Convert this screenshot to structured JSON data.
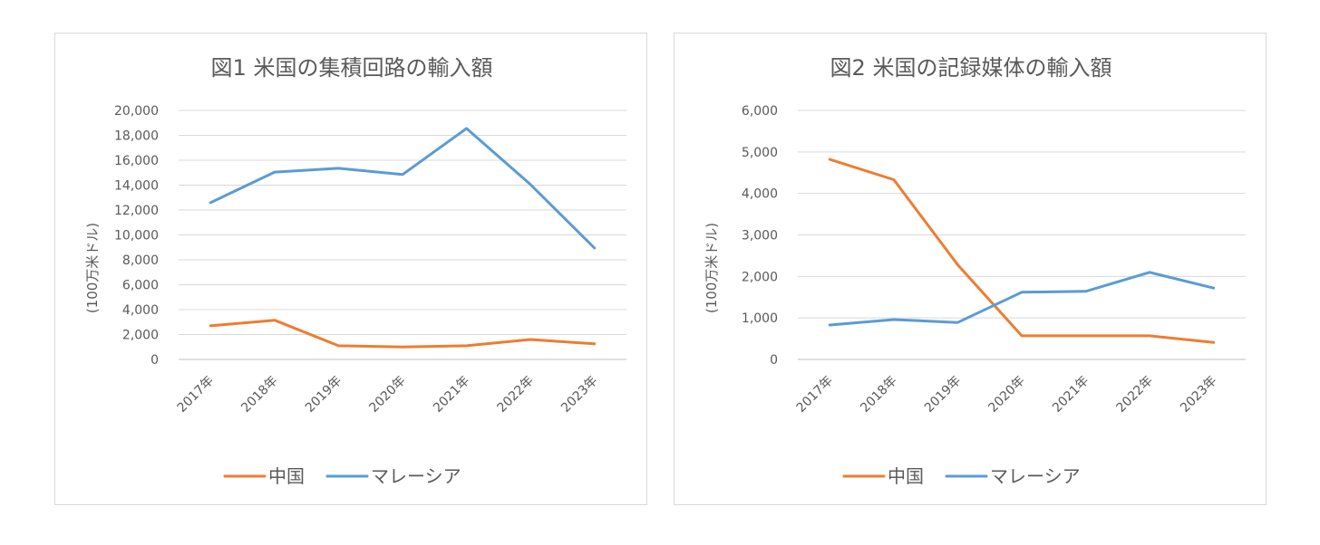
{
  "chart_data": [
    {
      "type": "line",
      "title": "図1 米国の集積回路の輸入額",
      "ylabel": "(100万米ドル)",
      "ylim": [
        0,
        20000
      ],
      "yticks": [
        "0",
        "2,000",
        "4,000",
        "6,000",
        "8,000",
        "10,000",
        "12,000",
        "14,000",
        "16,000",
        "18,000",
        "20,000"
      ],
      "categories": [
        "2017年",
        "2018年",
        "2019年",
        "2020年",
        "2021年",
        "2022年",
        "2023年"
      ],
      "grid": true,
      "legend_position": "bottom",
      "series": [
        {
          "name": "中国",
          "color": "#ED7D31",
          "values": [
            2700,
            3150,
            1100,
            1000,
            1100,
            1600,
            1250
          ]
        },
        {
          "name": "マレーシア",
          "color": "#5B9BD5",
          "values": [
            12600,
            15050,
            15350,
            14850,
            18550,
            14050,
            8950
          ]
        }
      ]
    },
    {
      "type": "line",
      "title": "図2 米国の記録媒体の輸入額",
      "ylabel": "(100万米ドル)",
      "ylim": [
        0,
        6000
      ],
      "yticks": [
        "0",
        "1,000",
        "2,000",
        "3,000",
        "4,000",
        "5,000",
        "6,000"
      ],
      "categories": [
        "2017年",
        "2018年",
        "2019年",
        "2020年",
        "2021年",
        "2022年",
        "2023年"
      ],
      "grid": true,
      "legend_position": "bottom",
      "series": [
        {
          "name": "中国",
          "color": "#ED7D31",
          "values": [
            4820,
            4330,
            2280,
            570,
            570,
            570,
            410
          ]
        },
        {
          "name": "マレーシア",
          "color": "#5B9BD5",
          "values": [
            830,
            960,
            890,
            1620,
            1640,
            2100,
            1720
          ]
        }
      ]
    }
  ]
}
